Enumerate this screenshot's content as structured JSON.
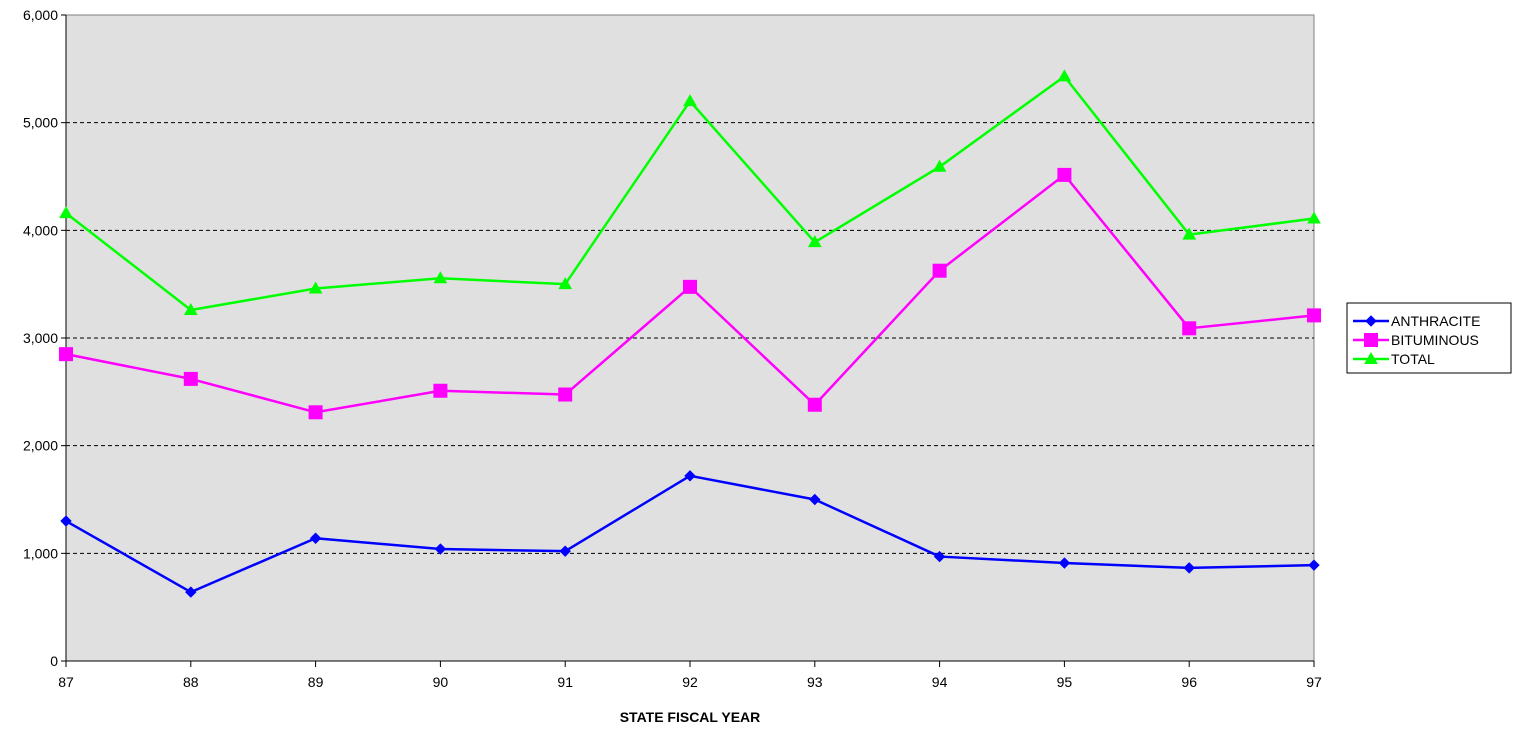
{
  "chart_data": {
    "type": "line",
    "title": "",
    "xlabel": "STATE FISCAL YEAR",
    "ylabel": "",
    "categories": [
      "87",
      "88",
      "89",
      "90",
      "91",
      "92",
      "93",
      "94",
      "95",
      "96",
      "97"
    ],
    "ylim": [
      0,
      6000
    ],
    "yticks": [
      0,
      1000,
      2000,
      3000,
      4000,
      5000,
      6000
    ],
    "ytick_labels": [
      "0",
      "1,000",
      "2,000",
      "3,000",
      "4,000",
      "5,000",
      "6,000"
    ],
    "grid": "horizontal dashed",
    "legend_position": "right",
    "series": [
      {
        "name": "ANTHRACITE",
        "color": "#0000ff",
        "marker": "diamond",
        "values": [
          1300,
          640,
          1140,
          1040,
          1020,
          1720,
          1500,
          970,
          910,
          865,
          890
        ]
      },
      {
        "name": "BITUMINOUS",
        "color": "#ff00ff",
        "marker": "square",
        "values": [
          2850,
          2620,
          2310,
          2510,
          2475,
          3475,
          2380,
          3625,
          4515,
          3090,
          3210
        ]
      },
      {
        "name": "TOTAL",
        "color": "#00ff00",
        "marker": "triangle",
        "values": [
          4160,
          3260,
          3460,
          3555,
          3500,
          5200,
          3890,
          4590,
          5430,
          3960,
          4110
        ]
      }
    ]
  }
}
